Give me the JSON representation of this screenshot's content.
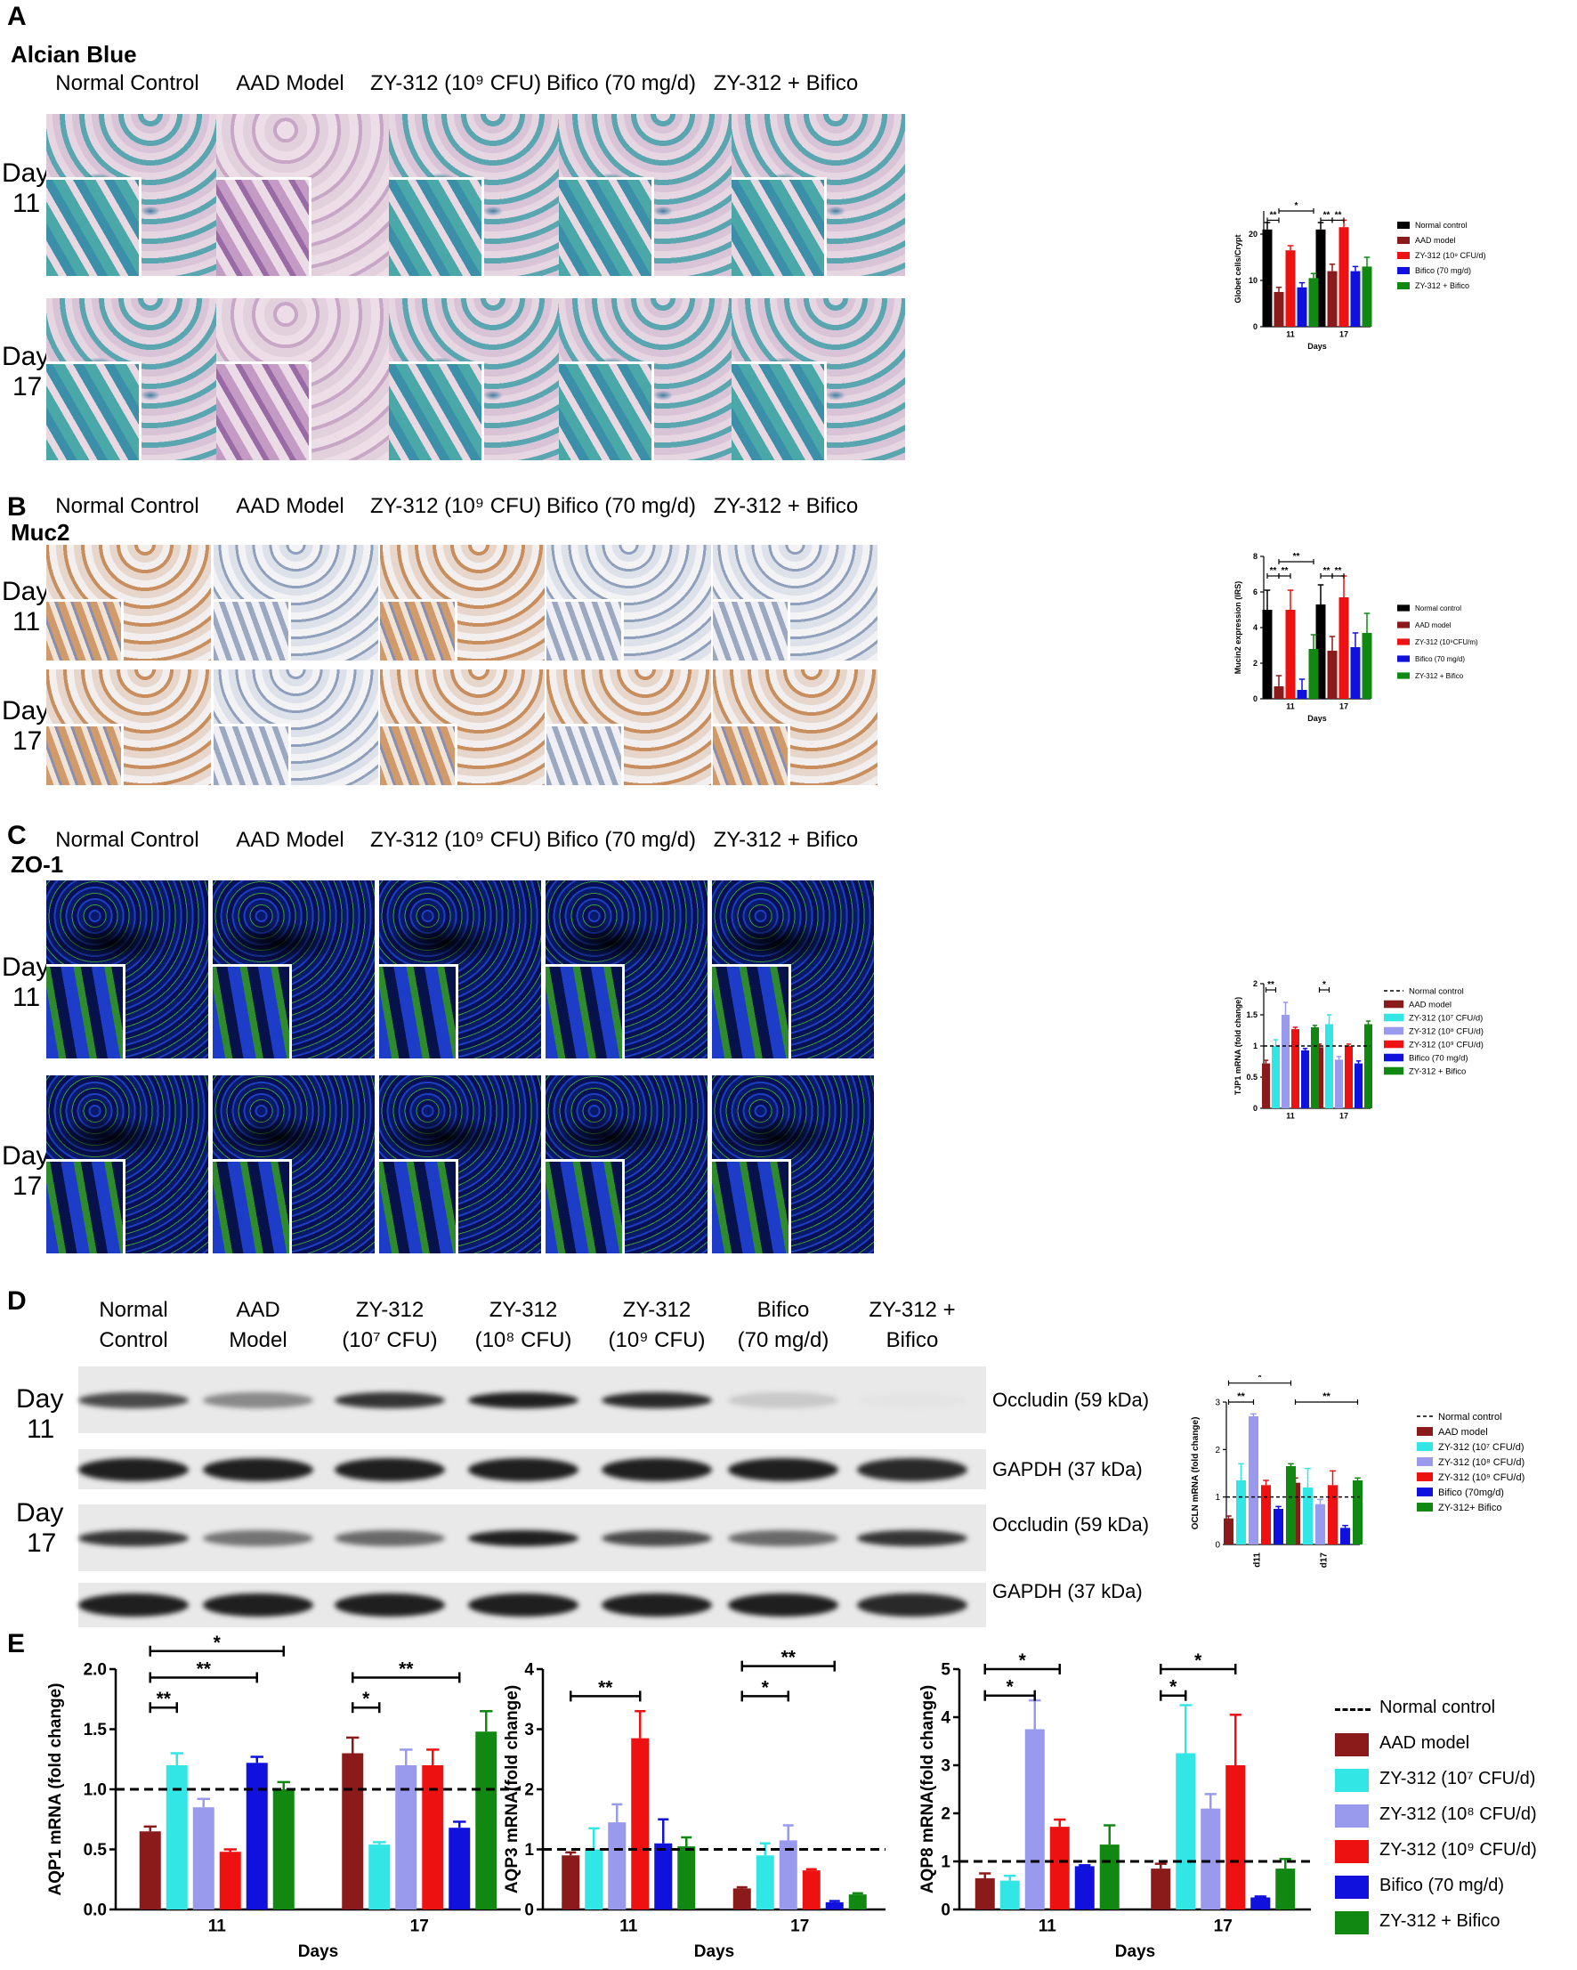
{
  "panel_labels": {
    "a": "A",
    "b": "B",
    "c": "C",
    "d": "D",
    "e": "E"
  },
  "stains": {
    "a": "Alcian Blue",
    "b": "Muc2",
    "c": "ZO-1"
  },
  "groups_abc": [
    "Normal Control",
    "AAD Model",
    "ZY-312 (10⁹ CFU)",
    "Bifico (70 mg/d)",
    "ZY-312 + Bifico"
  ],
  "day_rows": [
    {
      "word": "Day",
      "num": "11"
    },
    {
      "word": "Day",
      "num": "17"
    }
  ],
  "d_groups": [
    [
      "Normal",
      "Control"
    ],
    [
      "AAD",
      "Model"
    ],
    [
      "ZY-312",
      "(10⁷ CFU)"
    ],
    [
      "ZY-312",
      "(10⁸ CFU)"
    ],
    [
      "ZY-312",
      "(10⁹ CFU)"
    ],
    [
      "Bifico",
      "(70 mg/d)"
    ],
    [
      "ZY-312 +",
      "Bifico"
    ]
  ],
  "d_band_labels": [
    "Occludin (59 kDa)",
    "GAPDH (37 kDa)",
    "Occludin (59 kDa)",
    "GAPDH (37 kDa)"
  ],
  "colors": {
    "normal": "#000000",
    "aad": "#8b1a1a",
    "zy7": "#33e6e6",
    "zy8": "#9999ee",
    "zy9": "#ee1111",
    "bifico": "#1111dd",
    "combo": "#118811"
  },
  "chart_data": [
    {
      "id": "A",
      "type": "bar",
      "categories": [
        "11",
        "17"
      ],
      "xlabel": "Days",
      "ylabel": "Globet cells/Crypt",
      "ylim": [
        0,
        25
      ],
      "yticks": [
        0,
        10,
        20
      ],
      "series": [
        {
          "name": "Normal control",
          "values": [
            21,
            21
          ],
          "err": [
            1.5,
            1.5
          ]
        },
        {
          "name": "AAD model",
          "values": [
            7.5,
            12
          ],
          "err": [
            1,
            1.5
          ]
        },
        {
          "name": "ZY-312 (10⁹ CFU/d)",
          "values": [
            16.5,
            21.5
          ],
          "err": [
            1,
            1.5
          ]
        },
        {
          "name": "Bifico (70 mg/d)",
          "values": [
            8.5,
            12
          ],
          "err": [
            1,
            1
          ]
        },
        {
          "name": "ZY-312 + Bifico",
          "values": [
            10.5,
            13
          ],
          "err": [
            1,
            2
          ]
        }
      ],
      "significance": [
        {
          "label": "**",
          "cat": 0,
          "from": 0,
          "to": 1,
          "level": 23
        },
        {
          "label": "*",
          "cat": 0,
          "from": 1,
          "to": 4,
          "level": 25
        },
        {
          "label": "**",
          "cat": 1,
          "from": 0,
          "to": 1,
          "level": 23
        },
        {
          "label": "**",
          "cat": 1,
          "from": 1,
          "to": 2,
          "level": 23
        }
      ],
      "reference": null
    },
    {
      "id": "B",
      "type": "bar",
      "categories": [
        "11",
        "17"
      ],
      "xlabel": "Days",
      "ylabel": "Mucin2 expression (IRS)",
      "ylim": [
        0,
        8
      ],
      "yticks": [
        0,
        2,
        4,
        6,
        8
      ],
      "series": [
        {
          "name": "Normal control",
          "values": [
            5,
            5.3
          ],
          "err": [
            1.1,
            1.1
          ]
        },
        {
          "name": "AAD model",
          "values": [
            0.7,
            2.7
          ],
          "err": [
            0.6,
            0.8
          ]
        },
        {
          "name": "ZY-312 (10⁹CFU/m)",
          "values": [
            5,
            5.7
          ],
          "err": [
            1.1,
            1.2
          ]
        },
        {
          "name": "Bifico (70 mg/d)",
          "values": [
            0.5,
            2.9
          ],
          "err": [
            0.6,
            0.8
          ]
        },
        {
          "name": "ZY-312 + Bifico",
          "values": [
            2.8,
            3.7
          ],
          "err": [
            0.8,
            1.1
          ]
        }
      ],
      "significance": [
        {
          "label": "**",
          "cat": 0,
          "from": 0,
          "to": 1,
          "level": 6.9
        },
        {
          "label": "**",
          "cat": 0,
          "from": 1,
          "to": 2,
          "level": 6.9
        },
        {
          "label": "**",
          "cat": 0,
          "from": 1,
          "to": 4,
          "level": 7.7
        },
        {
          "label": "**",
          "cat": 1,
          "from": 0,
          "to": 1,
          "level": 6.9
        },
        {
          "label": "**",
          "cat": 1,
          "from": 1,
          "to": 2,
          "level": 6.9
        }
      ],
      "reference": null
    },
    {
      "id": "C",
      "type": "bar",
      "categories": [
        "11",
        "17"
      ],
      "xlabel": "",
      "ylabel": "TJP1 mRNA (fold change)",
      "ylim": [
        0,
        2.0
      ],
      "yticks": [
        0,
        0.5,
        1.0,
        1.5,
        2.0
      ],
      "series": [
        {
          "name": "AAD model",
          "values": [
            0.72,
            0.98
          ],
          "err": [
            0.05,
            0.05
          ]
        },
        {
          "name": "ZY-312 (10⁷ CFU/d)",
          "values": [
            1.0,
            1.35
          ],
          "err": [
            0.1,
            0.15
          ]
        },
        {
          "name": "ZY-312 (10⁸ CFU/d)",
          "values": [
            1.5,
            0.78
          ],
          "err": [
            0.2,
            0.05
          ]
        },
        {
          "name": "ZY-312 (10⁹ CFU/d)",
          "values": [
            1.27,
            1.0
          ],
          "err": [
            0.03,
            0.03
          ]
        },
        {
          "name": "Bifico (70 mg/d)",
          "values": [
            0.93,
            0.72
          ],
          "err": [
            0.03,
            0.04
          ]
        },
        {
          "name": "ZY-312 + Bifico",
          "values": [
            1.3,
            1.35
          ],
          "err": [
            0.03,
            0.05
          ]
        }
      ],
      "significance": [
        {
          "label": "**",
          "cat": 0,
          "from": 0,
          "to": 1,
          "level": 1.9
        },
        {
          "label": "**",
          "cat": 0,
          "from": 0,
          "to": 5,
          "level": 2.3
        },
        {
          "label": "*",
          "cat": 1,
          "from": 0,
          "to": 1,
          "level": 1.9
        },
        {
          "label": "*",
          "cat": 1,
          "from": 0,
          "to": 5,
          "level": 2.3
        }
      ],
      "reference": {
        "name": "Normal control",
        "value": 1.0
      }
    },
    {
      "id": "D",
      "type": "bar",
      "categories": [
        "d11",
        "d17"
      ],
      "xlabel": "",
      "ylabel": "OCLN mRNA (fold change)",
      "ylim": [
        0,
        3
      ],
      "yticks": [
        0,
        1,
        2,
        3
      ],
      "series": [
        {
          "name": "AAD model",
          "values": [
            0.55,
            1.3
          ],
          "err": [
            0.05,
            0.1
          ]
        },
        {
          "name": "ZY-312 (10⁷ CFU/d)",
          "values": [
            1.35,
            1.2
          ],
          "err": [
            0.35,
            0.4
          ]
        },
        {
          "name": "ZY-312 (10⁸ CFU/d)",
          "values": [
            2.7,
            0.85
          ],
          "err": [
            0.05,
            0.1
          ]
        },
        {
          "name": "ZY-312 (10⁹ CFU/d)",
          "values": [
            1.25,
            1.25
          ],
          "err": [
            0.1,
            0.3
          ]
        },
        {
          "name": "Bifico (70mg/d)",
          "values": [
            0.75,
            0.35
          ],
          "err": [
            0.05,
            0.05
          ]
        },
        {
          "name": "ZY-312+ Bifico",
          "values": [
            1.65,
            1.35
          ],
          "err": [
            0.05,
            0.05
          ]
        }
      ],
      "significance": [
        {
          "label": "**",
          "cat": 0,
          "from": 0,
          "to": 2,
          "level": 3.0
        },
        {
          "label": "*",
          "cat": 0,
          "from": 0,
          "to": 5,
          "level": 3.4
        },
        {
          "label": "**",
          "cat": 1,
          "from": 0,
          "to": 5,
          "level": 3.0
        }
      ],
      "reference": {
        "name": "Normal control",
        "value": 1.0
      }
    },
    {
      "id": "E1",
      "type": "bar",
      "categories": [
        "11",
        "17"
      ],
      "xlabel": "Days",
      "ylabel": "AQP1 mRNA (fold change)",
      "ylim": [
        0,
        2.0
      ],
      "yticks": [
        "0.0",
        "0.5",
        "1.0",
        "1.5",
        "2.0"
      ],
      "series": [
        {
          "name": "AAD model",
          "values": [
            0.65,
            1.3
          ],
          "err": [
            0.04,
            0.13
          ]
        },
        {
          "name": "ZY-312 (10⁷ CFU/d)",
          "values": [
            1.2,
            0.54
          ],
          "err": [
            0.1,
            0.02
          ]
        },
        {
          "name": "ZY-312 (10⁸ CFU/d)",
          "values": [
            0.85,
            1.2
          ],
          "err": [
            0.07,
            0.13
          ]
        },
        {
          "name": "ZY-312 (10⁹ CFU/d)",
          "values": [
            0.48,
            1.2
          ],
          "err": [
            0.02,
            0.13
          ]
        },
        {
          "name": "Bifico (70 mg/d)",
          "values": [
            1.22,
            0.68
          ],
          "err": [
            0.05,
            0.05
          ]
        },
        {
          "name": "ZY-312 + Bifico",
          "values": [
            1.0,
            1.48
          ],
          "err": [
            0.06,
            0.17
          ]
        }
      ],
      "significance": [
        {
          "label": "**",
          "cat": 0,
          "from": 0,
          "to": 1,
          "level": 1.68
        },
        {
          "label": "**",
          "cat": 0,
          "from": 0,
          "to": 4,
          "level": 1.93
        },
        {
          "label": "*",
          "cat": 0,
          "from": 0,
          "to": 5,
          "level": 2.15
        },
        {
          "label": "*",
          "cat": 1,
          "from": 0,
          "to": 1,
          "level": 1.68
        },
        {
          "label": "**",
          "cat": 1,
          "from": 0,
          "to": 4,
          "level": 1.93
        }
      ],
      "reference": {
        "name": "Normal control",
        "value": 1.0
      }
    },
    {
      "id": "E2",
      "type": "bar",
      "categories": [
        "11",
        "17"
      ],
      "xlabel": "Days",
      "ylabel": "AQP3 mRNA(fold change)",
      "ylim": [
        0,
        4
      ],
      "yticks": [
        "0",
        "1",
        "2",
        "3",
        "4"
      ],
      "series": [
        {
          "name": "AAD model",
          "values": [
            0.9,
            0.35
          ],
          "err": [
            0.05,
            0.02
          ]
        },
        {
          "name": "ZY-312 (10⁷ CFU/d)",
          "values": [
            1.0,
            0.9
          ],
          "err": [
            0.35,
            0.2
          ]
        },
        {
          "name": "ZY-312 (10⁸ CFU/d)",
          "values": [
            1.45,
            1.15
          ],
          "err": [
            0.3,
            0.25
          ]
        },
        {
          "name": "ZY-312 (10⁹ CFU/d)",
          "values": [
            2.85,
            0.65
          ],
          "err": [
            0.45,
            0.02
          ]
        },
        {
          "name": "Bifico (70 mg/d)",
          "values": [
            1.1,
            0.12
          ],
          "err": [
            0.4,
            0.02
          ]
        },
        {
          "name": "ZY-312 + Bifico",
          "values": [
            1.05,
            0.25
          ],
          "err": [
            0.15,
            0.02
          ]
        }
      ],
      "significance": [
        {
          "label": "**",
          "cat": 0,
          "from": 0,
          "to": 3,
          "level": 3.55
        },
        {
          "label": "*",
          "cat": 1,
          "from": 0,
          "to": 2,
          "level": 3.55
        },
        {
          "label": "**",
          "cat": 1,
          "from": 0,
          "to": 4,
          "level": 4.05
        }
      ],
      "reference": {
        "name": "Normal control",
        "value": 1.0
      }
    },
    {
      "id": "E3",
      "type": "bar",
      "categories": [
        "11",
        "17"
      ],
      "xlabel": "Days",
      "ylabel": "AQP8 mRNA(fold change)",
      "ylim": [
        0,
        5
      ],
      "yticks": [
        "0",
        "1",
        "2",
        "3",
        "4",
        "5"
      ],
      "series": [
        {
          "name": "AAD model",
          "values": [
            0.65,
            0.85
          ],
          "err": [
            0.1,
            0.1
          ]
        },
        {
          "name": "ZY-312 (10⁷ CFU/d)",
          "values": [
            0.6,
            3.25
          ],
          "err": [
            0.1,
            1.0
          ]
        },
        {
          "name": "ZY-312 (10⁸ CFU/d)",
          "values": [
            3.75,
            2.1
          ],
          "err": [
            0.6,
            0.3
          ]
        },
        {
          "name": "ZY-312 (10⁹ CFU/d)",
          "values": [
            1.72,
            3.0
          ],
          "err": [
            0.15,
            1.05
          ]
        },
        {
          "name": "Bifico (70 mg/d)",
          "values": [
            0.9,
            0.25
          ],
          "err": [
            0.02,
            0.02
          ]
        },
        {
          "name": "ZY-312 + Bifico",
          "values": [
            1.35,
            0.85
          ],
          "err": [
            0.4,
            0.2
          ]
        }
      ],
      "significance": [
        {
          "label": "*",
          "cat": 0,
          "from": 0,
          "to": 2,
          "level": 4.45
        },
        {
          "label": "*",
          "cat": 0,
          "from": 0,
          "to": 3,
          "level": 5.0
        },
        {
          "label": "*",
          "cat": 1,
          "from": 0,
          "to": 1,
          "level": 4.45
        },
        {
          "label": "*",
          "cat": 1,
          "from": 0,
          "to": 3,
          "level": 5.0
        }
      ],
      "reference": {
        "name": "Normal control",
        "value": 1.0
      }
    }
  ]
}
